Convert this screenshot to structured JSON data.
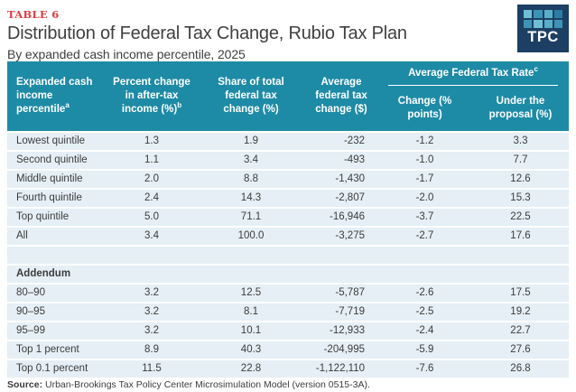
{
  "page": {
    "table_label": "TABLE 6",
    "title": "Distribution of Federal Tax Change, Rubio Tax Plan",
    "subtitle": "By expanded cash income percentile, 2025",
    "logo_text": "TPC",
    "source_label": "Source:",
    "source_text": " Urban-Brookings Tax Policy Center Microsimulation Model (version 0515-3A)."
  },
  "colors": {
    "header_teal": "#1E8BA6",
    "row_background": "#E5EFF5",
    "accent_red": "#DF3A3E",
    "logo_navy": "#1C3F63",
    "body_text": "#3C3C3C"
  },
  "table": {
    "columns": [
      {
        "label": "Expanded cash income percentile",
        "footnote": "a"
      },
      {
        "label": "Percent change in after-tax income (%)",
        "footnote": "b"
      },
      {
        "label": "Share of total federal tax change (%)",
        "footnote": ""
      },
      {
        "label": "Average federal tax change ($)",
        "footnote": ""
      },
      {
        "label": "Change (% points)",
        "footnote": ""
      },
      {
        "label": "Under the proposal (%)",
        "footnote": ""
      }
    ],
    "span_header": {
      "label": "Average Federal Tax Rate",
      "footnote": "c"
    },
    "rows": [
      {
        "type": "data",
        "cells": [
          "Lowest quintile",
          "1.3",
          "1.9",
          "-232",
          "-1.2",
          "3.3"
        ]
      },
      {
        "type": "data",
        "cells": [
          "Second quintile",
          "1.1",
          "3.4",
          "-493",
          "-1.0",
          "7.7"
        ]
      },
      {
        "type": "data",
        "cells": [
          "Middle quintile",
          "2.0",
          "8.8",
          "-1,430",
          "-1.7",
          "12.6"
        ]
      },
      {
        "type": "data",
        "cells": [
          "Fourth quintile",
          "2.4",
          "14.3",
          "-2,807",
          "-2.0",
          "15.3"
        ]
      },
      {
        "type": "data",
        "cells": [
          "Top quintile",
          "5.0",
          "71.1",
          "-16,946",
          "-3.7",
          "22.5"
        ]
      },
      {
        "type": "data",
        "cells": [
          "All",
          "3.4",
          "100.0",
          "-3,275",
          "-2.7",
          "17.6"
        ]
      },
      {
        "type": "spacer"
      },
      {
        "type": "section",
        "label": "Addendum"
      },
      {
        "type": "data",
        "cells": [
          "80–90",
          "3.2",
          "12.5",
          "-5,787",
          "-2.6",
          "17.5"
        ]
      },
      {
        "type": "data",
        "cells": [
          "90–95",
          "3.2",
          "8.1",
          "-7,719",
          "-2.5",
          "19.2"
        ]
      },
      {
        "type": "data",
        "cells": [
          "95–99",
          "3.2",
          "10.1",
          "-12,933",
          "-2.4",
          "22.7"
        ]
      },
      {
        "type": "data",
        "cells": [
          "Top 1 percent",
          "8.9",
          "40.3",
          "-204,995",
          "-5.9",
          "27.6"
        ]
      },
      {
        "type": "data",
        "cells": [
          "Top 0.1 percent",
          "11.5",
          "22.8",
          "-1,122,110",
          "-7.6",
          "26.8"
        ]
      }
    ]
  }
}
